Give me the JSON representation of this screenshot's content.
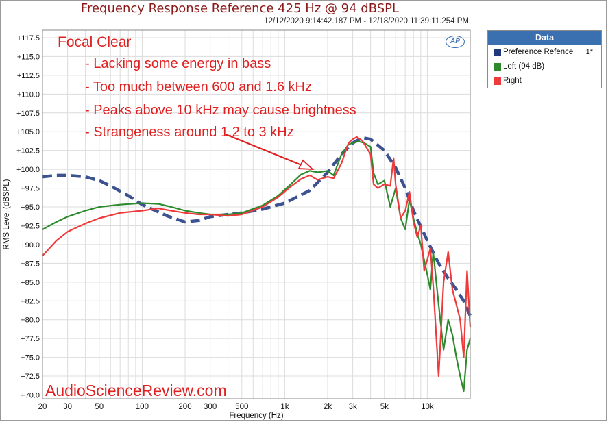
{
  "chart_data": {
    "type": "line",
    "title": "Frequency Response Reference 425 Hz @ 94 dBSPL",
    "subtitle": "12/12/2020 9:14:42.187 PM - 12/18/2020 11:39:11.254 PM",
    "xlabel": "Frequency (Hz)",
    "ylabel": "RMS Level (dBSPL)",
    "xscale": "log",
    "xlim": [
      20,
      20000
    ],
    "ylim": [
      69.5,
      118.5
    ],
    "x_ticks": [
      20,
      30,
      50,
      100,
      200,
      300,
      500,
      1000,
      2000,
      3000,
      5000,
      10000
    ],
    "x_tick_labels": [
      "20",
      "30",
      "50",
      "100",
      "200",
      "300",
      "500",
      "1k",
      "2k",
      "3k",
      "5k",
      "10k"
    ],
    "y_ticks": [
      117.5,
      115,
      112.5,
      110,
      107.5,
      105,
      102.5,
      100,
      97.5,
      95,
      92.5,
      90,
      87.5,
      85,
      82.5,
      80,
      77.5,
      75,
      72.5,
      70
    ],
    "y_tick_labels": [
      "+117.5",
      "+115.0",
      "+112.5",
      "+110.0",
      "+107.5",
      "+105.0",
      "+102.5",
      "+100.0",
      "+97.5",
      "+95.0",
      "+92.5",
      "+90.0",
      "+87.5",
      "+85.0",
      "+82.5",
      "+80.0",
      "+77.5",
      "+75.0",
      "+72.5",
      "+70.0"
    ],
    "grid": true,
    "legend_position": "right",
    "series": [
      {
        "name": "Preference Refence",
        "color": "#3d5290",
        "style": "dashed",
        "x": [
          20,
          25,
          30,
          40,
          50,
          60,
          80,
          100,
          150,
          200,
          250,
          300,
          400,
          500,
          700,
          1000,
          1500,
          2000,
          2500,
          3000,
          3500,
          4000,
          5000,
          6000,
          7000,
          8000,
          10000,
          12000,
          14000,
          16000,
          18000,
          20000
        ],
        "values": [
          99.0,
          99.2,
          99.2,
          99.0,
          98.5,
          97.8,
          96.5,
          95.3,
          93.8,
          93.0,
          93.2,
          93.7,
          94.0,
          94.2,
          94.7,
          95.5,
          97.2,
          99.6,
          102.0,
          103.5,
          104.2,
          104.0,
          102.5,
          100.2,
          97.5,
          94.5,
          90.5,
          87.5,
          85.5,
          84.0,
          82.5,
          80.5
        ]
      },
      {
        "name": "Left (94 dB)",
        "color": "#2d8a2d",
        "style": "solid",
        "x": [
          20,
          25,
          30,
          40,
          50,
          70,
          100,
          130,
          160,
          200,
          250,
          300,
          400,
          500,
          700,
          900,
          1100,
          1300,
          1500,
          1700,
          2000,
          2200,
          2500,
          2800,
          3000,
          3300,
          3600,
          4000,
          4200,
          4500,
          5000,
          5500,
          6000,
          6500,
          7000,
          7500,
          8000,
          8500,
          9000,
          10000,
          10500,
          11000,
          12000,
          13000,
          14000,
          15000,
          16000,
          17000,
          18000,
          19000,
          20000
        ],
        "values": [
          92.0,
          93.0,
          93.7,
          94.5,
          95.0,
          95.3,
          95.5,
          95.4,
          95.0,
          94.5,
          94.2,
          94.0,
          94.0,
          94.2,
          95.2,
          96.5,
          98.0,
          99.3,
          99.8,
          99.6,
          99.8,
          99.2,
          102.0,
          103.3,
          103.5,
          103.7,
          103.5,
          103.0,
          99.5,
          98.0,
          98.5,
          95.0,
          97.5,
          93.5,
          92.0,
          96.0,
          93.5,
          91.5,
          90.0,
          86.0,
          84.0,
          89.0,
          82.0,
          76.0,
          80.0,
          78.0,
          75.0,
          72.5,
          70.5,
          76.0,
          77.5
        ]
      },
      {
        "name": "Right",
        "color": "#ee3a3a",
        "style": "solid",
        "x": [
          20,
          25,
          30,
          40,
          50,
          70,
          100,
          130,
          160,
          200,
          250,
          300,
          400,
          500,
          700,
          900,
          1100,
          1300,
          1500,
          1700,
          2000,
          2200,
          2500,
          2800,
          3000,
          3200,
          3500,
          4000,
          4200,
          4500,
          5000,
          5500,
          5800,
          6000,
          6500,
          7000,
          7500,
          8000,
          8500,
          9000,
          9500,
          10000,
          10500,
          11000,
          12000,
          13000,
          14000,
          15000,
          16000,
          17000,
          18000,
          19000,
          20000
        ],
        "values": [
          88.5,
          90.5,
          91.7,
          92.8,
          93.5,
          94.2,
          94.5,
          94.8,
          94.5,
          94.2,
          94.0,
          94.0,
          93.8,
          94.0,
          95.0,
          96.3,
          97.7,
          98.7,
          99.2,
          98.6,
          99.0,
          98.8,
          100.8,
          103.5,
          104.0,
          104.3,
          103.8,
          102.0,
          98.0,
          97.5,
          98.0,
          97.8,
          101.5,
          98.0,
          93.5,
          94.5,
          97.0,
          93.0,
          91.0,
          92.5,
          86.5,
          88.0,
          89.5,
          84.5,
          72.5,
          85.0,
          89.0,
          84.0,
          82.0,
          80.0,
          75.0,
          86.5,
          79.0
        ]
      }
    ]
  },
  "legend": {
    "title": "Data",
    "items": [
      {
        "label": "Preference Refence",
        "extra": "1*",
        "color": "#1f3a7a"
      },
      {
        "label": "Left (94 dB)",
        "extra": "",
        "color": "#2d8a2d"
      },
      {
        "label": "Right",
        "extra": "",
        "color": "#ee3a3a"
      }
    ]
  },
  "annotations": {
    "heading": "Focal Clear",
    "bullets": [
      "- Lacking some energy in bass",
      "- Too much between 600 and 1.6 kHz",
      "- Peaks  above 10 kHz may cause brightness",
      "- Strangeness around 1.2 to 3 kHz"
    ],
    "arrow_color": "#e02020"
  },
  "logo_text": "AP",
  "watermark": "AudioScienceReview.com"
}
